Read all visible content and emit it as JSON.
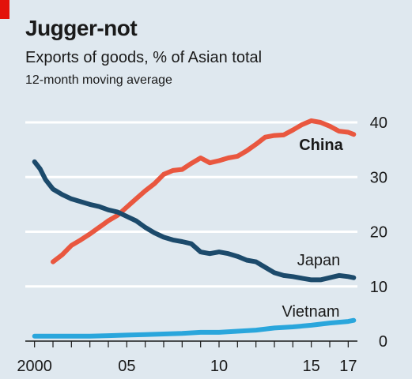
{
  "header": {
    "title": "Jugger-not",
    "subtitle": "Exports of goods, % of Asian total",
    "note": "12-month moving average"
  },
  "colors": {
    "background": "#dfe8ef",
    "gridline": "#ffffff",
    "accent": "#e3120b",
    "China": "#e9573f",
    "Japan": "#1c4a6b",
    "Vietnam": "#2aa6dc"
  },
  "chart_data": {
    "type": "line",
    "title": "Jugger-not",
    "subtitle": "Exports of goods, % of Asian total",
    "note": "12-month moving average",
    "xlabel": "",
    "ylabel": "",
    "xlim": [
      1999.5,
      2017.5
    ],
    "ylim": [
      0,
      42
    ],
    "y_axis_side": "right",
    "grid": true,
    "x_ticks": [
      {
        "value": 2000,
        "label": "2000"
      },
      {
        "value": 2005,
        "label": "05"
      },
      {
        "value": 2010,
        "label": "10"
      },
      {
        "value": 2015,
        "label": "15"
      },
      {
        "value": 2017,
        "label": "17"
      }
    ],
    "y_ticks": [
      0,
      10,
      20,
      30,
      40
    ],
    "legend": "inline labels",
    "series": [
      {
        "name": "China",
        "label_bold": true,
        "x": [
          2001,
          2001.5,
          2002,
          2002.5,
          2003,
          2003.5,
          2004,
          2004.5,
          2005,
          2005.5,
          2006,
          2006.5,
          2007,
          2007.5,
          2008,
          2008.5,
          2009,
          2009.5,
          2010,
          2010.5,
          2011,
          2011.5,
          2012,
          2012.5,
          2013,
          2013.5,
          2014,
          2014.5,
          2015,
          2015.5,
          2016,
          2016.5,
          2017,
          2017.3
        ],
        "y": [
          14.5,
          15.8,
          17.5,
          18.5,
          19.6,
          20.8,
          22.0,
          23.0,
          24.5,
          26.0,
          27.5,
          28.8,
          30.5,
          31.2,
          31.4,
          32.5,
          33.5,
          32.6,
          33.0,
          33.5,
          33.8,
          34.8,
          36.0,
          37.3,
          37.6,
          37.7,
          38.6,
          39.6,
          40.3,
          40.0,
          39.3,
          38.4,
          38.2,
          37.8
        ]
      },
      {
        "name": "Japan",
        "label_bold": false,
        "x": [
          2000,
          2000.3,
          2000.6,
          2001,
          2001.5,
          2002,
          2002.5,
          2003,
          2003.5,
          2004,
          2004.5,
          2005,
          2005.5,
          2006,
          2006.5,
          2007,
          2007.5,
          2008,
          2008.5,
          2009,
          2009.5,
          2010,
          2010.5,
          2011,
          2011.5,
          2012,
          2012.5,
          2013,
          2013.5,
          2014,
          2014.5,
          2015,
          2015.5,
          2016,
          2016.5,
          2017,
          2017.3
        ],
        "y": [
          32.8,
          31.5,
          29.5,
          27.8,
          26.8,
          26.0,
          25.5,
          25.0,
          24.6,
          24.0,
          23.6,
          22.8,
          22.0,
          20.8,
          19.8,
          19.0,
          18.5,
          18.2,
          17.8,
          16.3,
          16.0,
          16.3,
          16.0,
          15.5,
          14.8,
          14.5,
          13.5,
          12.5,
          12.0,
          11.8,
          11.5,
          11.2,
          11.2,
          11.6,
          12.0,
          11.8,
          11.6
        ]
      },
      {
        "name": "Vietnam",
        "label_bold": false,
        "x": [
          2000,
          2001,
          2002,
          2003,
          2004,
          2005,
          2006,
          2007,
          2008,
          2009,
          2010,
          2011,
          2012,
          2013,
          2014,
          2015,
          2016,
          2017,
          2017.3
        ],
        "y": [
          0.9,
          0.9,
          0.9,
          0.9,
          1.0,
          1.1,
          1.2,
          1.3,
          1.4,
          1.6,
          1.6,
          1.8,
          2.0,
          2.4,
          2.6,
          2.9,
          3.3,
          3.6,
          3.8
        ]
      }
    ]
  }
}
